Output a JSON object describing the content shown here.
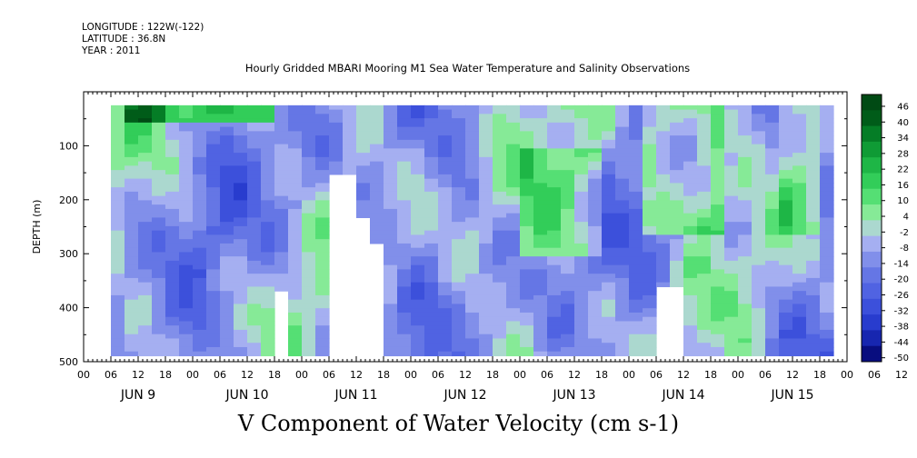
{
  "header": {
    "longitude": "LONGITUDE : 122W(-122)",
    "latitude": "LATITUDE : 36.8N",
    "year": "YEAR : 2011"
  },
  "chart_data": {
    "type": "heatmap",
    "title": "Hourly Gridded MBARI Mooring M1 Sea Water Temperature and Salinity Observations",
    "xlabel": "",
    "ylabel": "DEPTH (m)",
    "colorbar_label": "V Component of Water Velocity (cm s-1)",
    "x_hour_ticks": [
      "00",
      "06",
      "12",
      "18",
      "00",
      "06",
      "12",
      "18",
      "00",
      "06",
      "12",
      "18",
      "00",
      "06",
      "12",
      "18",
      "00",
      "06",
      "12",
      "18",
      "00",
      "06",
      "12",
      "18",
      "00",
      "06",
      "12",
      "18",
      "00",
      "06",
      "12",
      "18",
      "00"
    ],
    "x_day_labels": [
      "JUN  9",
      "JUN 10",
      "JUN 11",
      "JUN 12",
      "JUN 13",
      "JUN 14",
      "JUN 15"
    ],
    "xlim": [
      "2011-06-09 00:00",
      "2011-06-16 00:00"
    ],
    "y_tick_labels": [
      "100",
      "200",
      "300",
      "400",
      "500"
    ],
    "y_ticks": [
      100,
      200,
      300,
      400,
      500
    ],
    "ylim": [
      500,
      0
    ],
    "y_reversed": true,
    "colorbar_levels": [
      -50,
      -44,
      -38,
      -32,
      -26,
      -20,
      -14,
      -8,
      -2,
      4,
      10,
      16,
      22,
      28,
      34,
      40,
      46
    ],
    "colorbar_labels": [
      "46",
      "40",
      "34",
      "28",
      "22",
      "16",
      "10",
      "4",
      "-2",
      "-8",
      "-14",
      "-20",
      "-26",
      "-32",
      "-38",
      "-44",
      "-50"
    ],
    "colors": {
      "low": "#000066",
      "mid_blue": "#6f7fe6",
      "light_blue": "#b7bff5",
      "light_green": "#9ff0a8",
      "mid_green": "#3cd962",
      "high": "#004a14"
    },
    "data_extent_x": [
      "2011-06-09 06:00",
      "2011-06-15 21:00"
    ],
    "data_extent_depth": [
      25,
      485
    ],
    "pattern_description_values": {
      "mean": -6,
      "range": [
        -30,
        28
      ]
    }
  }
}
